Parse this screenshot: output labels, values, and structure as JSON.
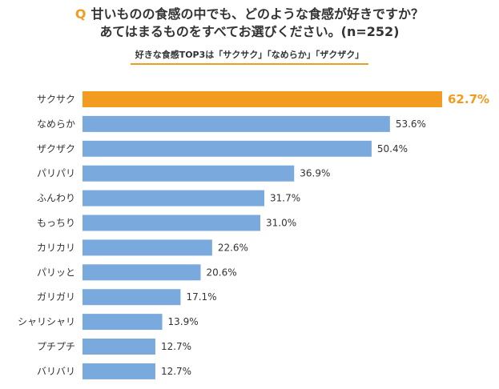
{
  "header": {
    "q_mark": "Q",
    "question_line1": "甘いものの食感の中でも、どのような食感が好きですか？",
    "question_line2": "あてはまるものをすべてお選びください。(n=252)",
    "subtitle": "好きな食感TOP3は「サクサク」「なめらか」「ザクザク」"
  },
  "colors": {
    "highlight": "#f39a20",
    "bar": "#7aa9dd",
    "text": "#333333"
  },
  "chart_data": {
    "type": "bar",
    "orientation": "horizontal",
    "categories": [
      "サクサク",
      "なめらか",
      "ザクザク",
      "パリパリ",
      "ふんわり",
      "もっちり",
      "カリカリ",
      "パリッと",
      "ガリガリ",
      "シャリシャリ",
      "プチプチ",
      "バリバリ"
    ],
    "values": [
      62.7,
      53.6,
      50.4,
      36.9,
      31.7,
      31.0,
      22.6,
      20.6,
      17.1,
      13.9,
      12.7,
      12.7
    ],
    "value_labels": [
      "62.7%",
      "53.6%",
      "50.4%",
      "36.9%",
      "31.7%",
      "31.0%",
      "22.6%",
      "20.6%",
      "17.1%",
      "13.9%",
      "12.7%",
      "12.7%"
    ],
    "highlight_index": 0,
    "unit": "%",
    "xlim": [
      0,
      62.7
    ],
    "grid": false
  }
}
